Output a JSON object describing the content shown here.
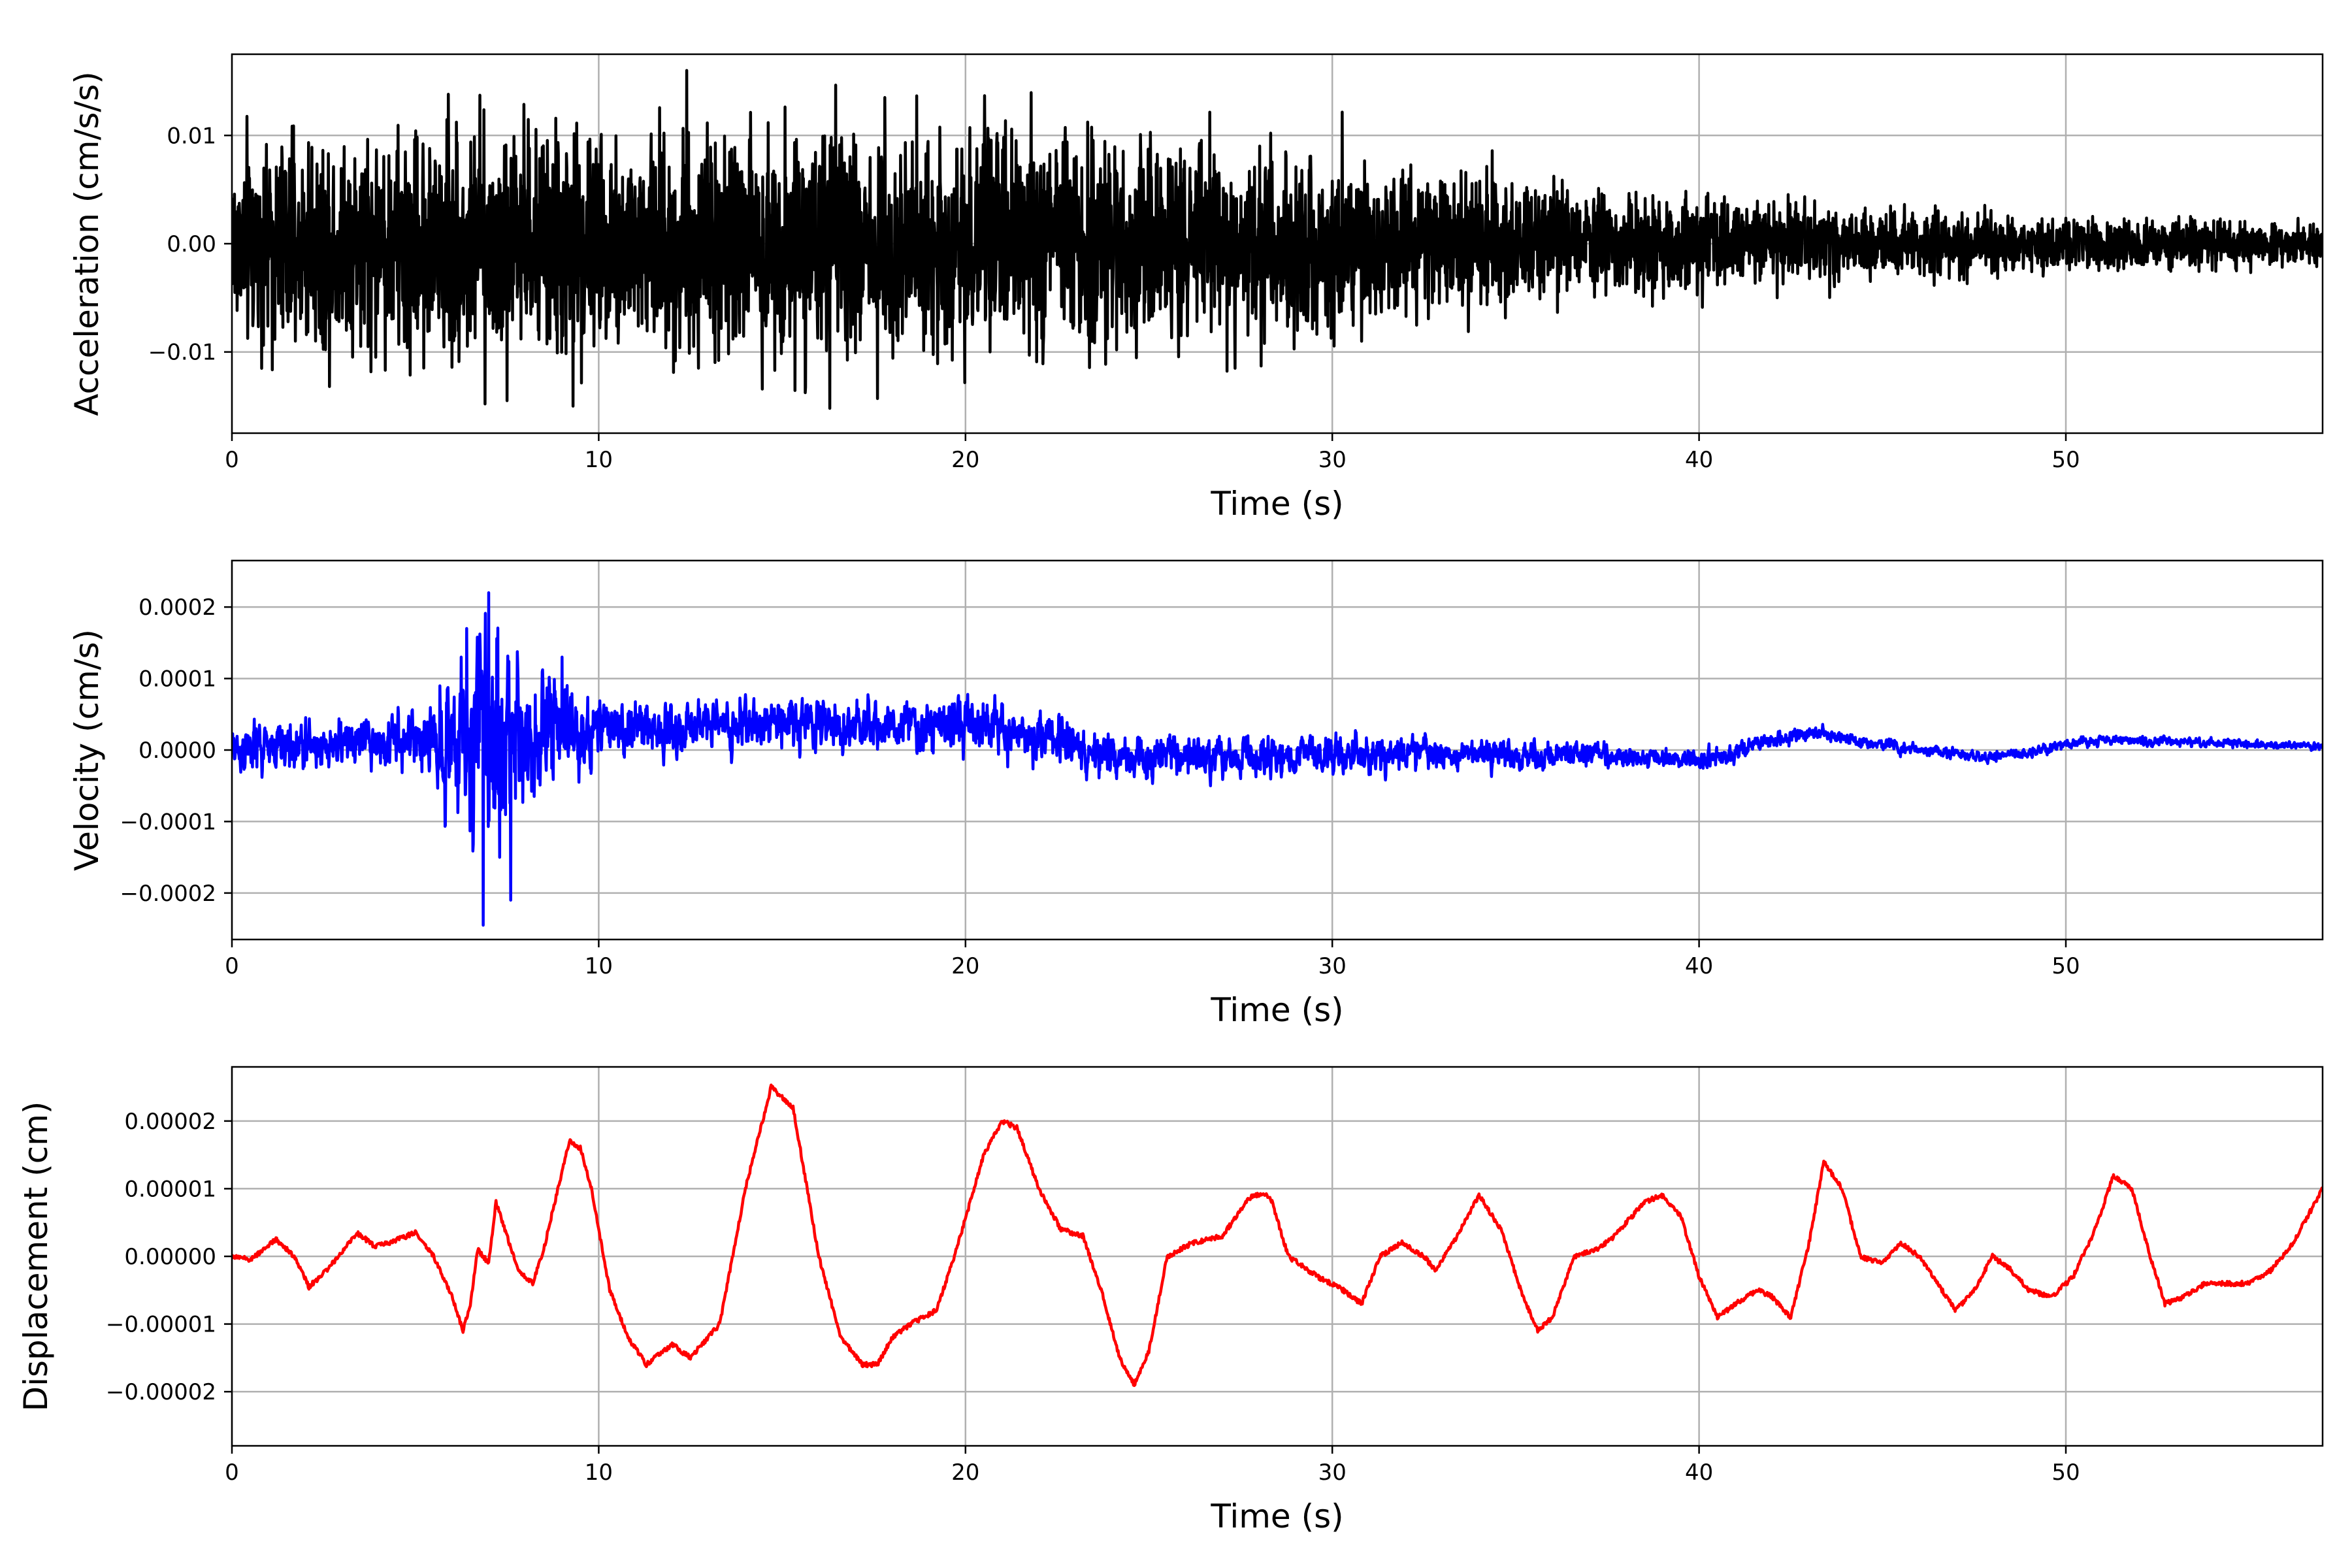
{
  "chart_data": [
    {
      "type": "line",
      "name": "acceleration",
      "xlabel": "Time (s)",
      "ylabel": "Acceleration (cm/s/s)",
      "xlim": [
        0,
        57
      ],
      "ylim": [
        -0.0175,
        0.0175
      ],
      "xticks": [
        0,
        10,
        20,
        30,
        40,
        50
      ],
      "yticks": [
        -0.01,
        0.0,
        0.01
      ],
      "xtick_labels": [
        "0",
        "10",
        "20",
        "30",
        "40",
        "50"
      ],
      "ytick_labels": [
        "−0.01",
        "0.00",
        "0.01"
      ],
      "grid": true,
      "color": "#000000",
      "dt": 0.01,
      "envelope": {
        "t": [
          0,
          5,
          10,
          15,
          20,
          25,
          30,
          35,
          40,
          45,
          50,
          57
        ],
        "amplitude": [
          0.0085,
          0.0095,
          0.0095,
          0.0098,
          0.0095,
          0.0085,
          0.0075,
          0.0052,
          0.0038,
          0.0028,
          0.0022,
          0.0018
        ]
      },
      "peaks": [
        {
          "t": 12.4,
          "v": 0.016
        },
        {
          "t": 17.8,
          "v": 0.0135
        },
        {
          "t": 5.9,
          "v": 0.0138
        },
        {
          "t": 9.3,
          "v": -0.015
        },
        {
          "t": 6.9,
          "v": -0.0148
        },
        {
          "t": 17.6,
          "v": -0.0143
        },
        {
          "t": 7.5,
          "v": -0.0145
        }
      ]
    },
    {
      "type": "line",
      "name": "velocity",
      "xlabel": "Time (s)",
      "ylabel": "Velocity (cm/s)",
      "xlim": [
        0,
        57
      ],
      "ylim": [
        -0.000265,
        0.000265
      ],
      "xticks": [
        0,
        10,
        20,
        30,
        40,
        50
      ],
      "yticks": [
        -0.0002,
        -0.0001,
        0.0,
        0.0001,
        0.0002
      ],
      "xtick_labels": [
        "0",
        "10",
        "20",
        "30",
        "40",
        "50"
      ],
      "ytick_labels": [
        "−0.0002",
        "−0.0001",
        "0.0000",
        "0.0001",
        "0.0002"
      ],
      "grid": true,
      "color": "#0000ff",
      "dt": 0.01,
      "envelope": {
        "t": [
          0,
          5,
          6,
          7,
          8,
          9,
          10,
          15,
          20,
          25,
          30,
          35,
          40,
          45,
          50,
          57
        ],
        "amplitude": [
          4e-05,
          4e-05,
          0.00012,
          0.00018,
          0.00011,
          8e-05,
          4.5e-05,
          4e-05,
          4e-05,
          3.5e-05,
          3e-05,
          2.2e-05,
          1.5e-05,
          1e-05,
          8e-06,
          6e-06
        ]
      },
      "trend": {
        "t": [
          0,
          14.5,
          21,
          24,
          36,
          40,
          43,
          46,
          48,
          51,
          57
        ],
        "v": [
          0.0,
          4e-05,
          3e-05,
          -1e-05,
          -5e-06,
          -1.5e-05,
          2.5e-05,
          0.0,
          -1e-05,
          1.5e-05,
          5e-06
        ]
      },
      "peaks": [
        {
          "t": 7.0,
          "v": 0.00022
        },
        {
          "t": 6.4,
          "v": 0.00017
        },
        {
          "t": 6.85,
          "v": -0.000245
        },
        {
          "t": 7.6,
          "v": -0.00021
        },
        {
          "t": 9.0,
          "v": 0.00013
        },
        {
          "t": 7.3,
          "v": -0.00015
        }
      ]
    },
    {
      "type": "line",
      "name": "displacement",
      "xlabel": "Time (s)",
      "ylabel": "Displacement (cm)",
      "xlim": [
        0,
        57
      ],
      "ylim": [
        -2.8e-05,
        2.8e-05
      ],
      "xticks": [
        0,
        10,
        20,
        30,
        40,
        50
      ],
      "yticks": [
        -2e-05,
        -1e-05,
        0.0,
        1e-05,
        2e-05
      ],
      "xtick_labels": [
        "0",
        "10",
        "20",
        "30",
        "40",
        "50"
      ],
      "ytick_labels": [
        "−0.00002",
        "−0.00001",
        "0.00000",
        "0.00001",
        "0.00002"
      ],
      "grid": true,
      "color": "#ff0000",
      "x": [
        0,
        0.5,
        1.2,
        1.7,
        2.1,
        2.6,
        3.4,
        3.9,
        4.3,
        5.0,
        5.5,
        6.0,
        6.3,
        6.5,
        6.7,
        7.0,
        7.2,
        7.5,
        7.8,
        8.2,
        8.5,
        8.8,
        9.2,
        9.5,
        9.8,
        10.3,
        10.8,
        11.3,
        12.0,
        12.5,
        13.3,
        14.0,
        14.7,
        15.3,
        16.0,
        16.6,
        17.2,
        17.6,
        18.0,
        18.5,
        19.2,
        19.7,
        20.5,
        21.0,
        21.4,
        22.0,
        22.6,
        23.2,
        23.7,
        24.2,
        24.6,
        25.0,
        25.5,
        26.2,
        27.0,
        27.8,
        28.3,
        28.8,
        29.6,
        30.3,
        30.8,
        31.3,
        31.9,
        32.5,
        32.8,
        33.3,
        34.0,
        34.6,
        35.2,
        35.6,
        36.0,
        36.6,
        37.2,
        37.7,
        38.5,
        39.0,
        39.5,
        40.0,
        40.5,
        41.0,
        41.6,
        42.0,
        42.5,
        43.0,
        43.4,
        43.9,
        44.4,
        45.0,
        45.5,
        46.0,
        46.5,
        47.0,
        47.5,
        48.0,
        48.5,
        49.0,
        49.6,
        50.2,
        50.8,
        51.3,
        51.8,
        52.3,
        52.7,
        53.2,
        53.8,
        54.4,
        55.0,
        55.6,
        56.2,
        57.0
      ],
      "y": [
        0.0,
        -5e-07,
        2.5e-06,
        0.0,
        -4.5e-06,
        -2e-06,
        3.5e-06,
        1.5e-06,
        2e-06,
        3.5e-06,
        0.0,
        -6e-06,
        -1.1e-05,
        -7e-06,
        1e-06,
        -1e-06,
        8e-06,
        3e-06,
        -2e-06,
        -4e-06,
        1e-06,
        8e-06,
        1.7e-05,
        1.6e-05,
        1e-05,
        -5e-06,
        -1.2e-05,
        -1.6e-05,
        -1.3e-05,
        -1.5e-05,
        -1e-05,
        1e-05,
        2.5e-05,
        2.2e-05,
        0.0,
        -1.2e-05,
        -1.6e-05,
        -1.6e-05,
        -1.2e-05,
        -1e-05,
        -8e-06,
        0.0,
        1.5e-05,
        2e-05,
        1.9e-05,
        1e-05,
        4e-06,
        3e-06,
        -5e-06,
        -1.5e-05,
        -1.9e-05,
        -1.4e-05,
        0.0,
        2e-06,
        3e-06,
        9e-06,
        9e-06,
        0.0,
        -3e-06,
        -5e-06,
        -7e-06,
        0.0,
        2e-06,
        0.0,
        -2e-06,
        2e-06,
        9e-06,
        4e-06,
        -6e-06,
        -1.1e-05,
        -9e-06,
        0.0,
        1e-06,
        3e-06,
        8e-06,
        9e-06,
        6e-06,
        -3e-06,
        -9e-06,
        -7e-06,
        -5e-06,
        -6e-06,
        -9e-06,
        2e-06,
        1.4e-05,
        1e-05,
        0.0,
        -1e-06,
        2e-06,
        0.0,
        -4e-06,
        -8e-06,
        -5e-06,
        0.0,
        -2e-06,
        -5e-06,
        -6e-06,
        -3e-06,
        4e-06,
        1.2e-05,
        1e-05,
        0.0,
        -7e-06,
        -6e-06,
        -4e-06,
        -4e-06,
        -4e-06,
        -2e-06,
        2e-06,
        1e-05
      ],
      "jitter": 7e-07
    }
  ]
}
